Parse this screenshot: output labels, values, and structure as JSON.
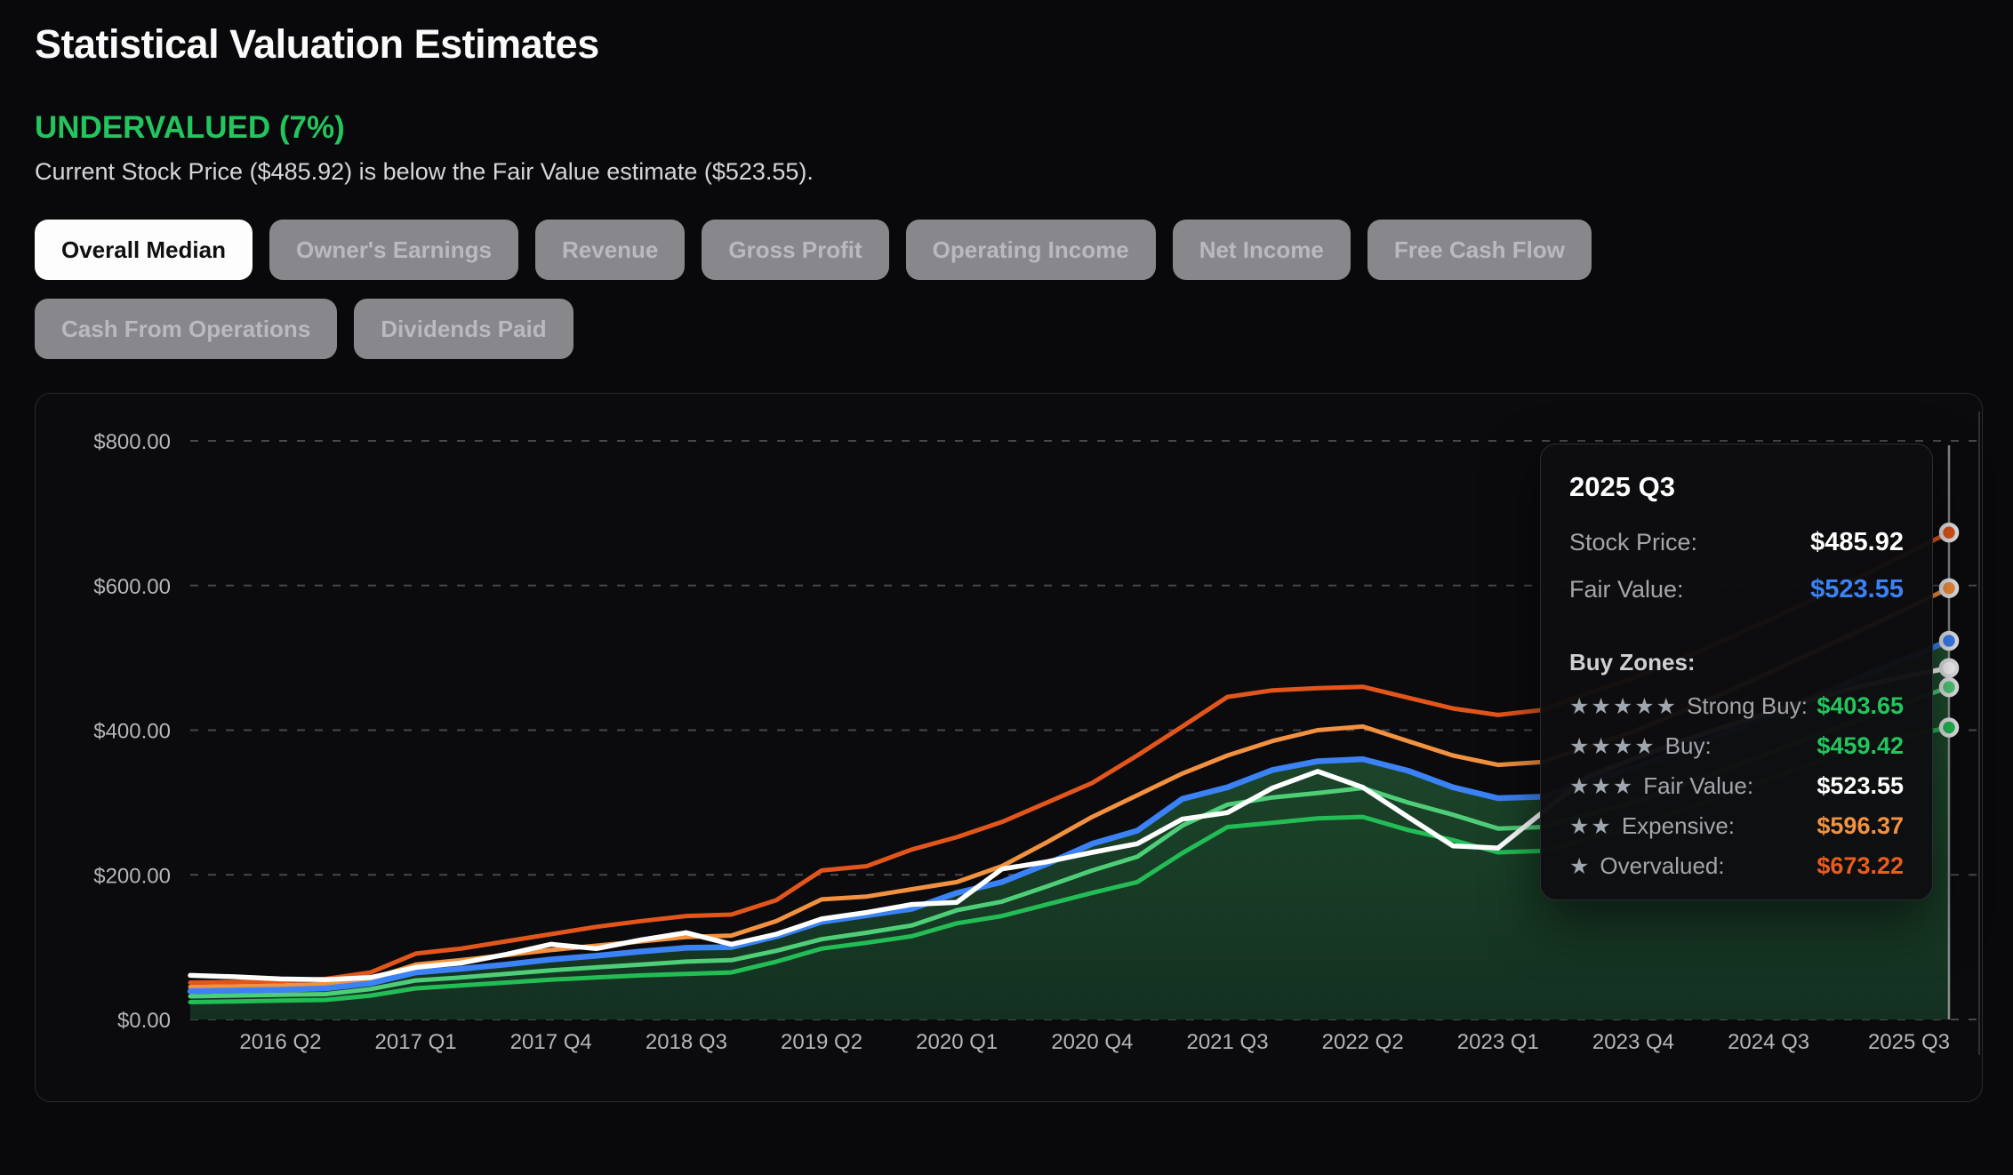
{
  "page": {
    "title": "Statistical Valuation Estimates"
  },
  "status": {
    "label": "UNDERVALUED (7%)",
    "description": "Current Stock Price ($485.92) is below the Fair Value estimate ($523.55).",
    "color": "#22c55e"
  },
  "tabs": {
    "items": [
      {
        "label": "Overall Median",
        "active": true
      },
      {
        "label": "Owner's Earnings",
        "active": false
      },
      {
        "label": "Revenue",
        "active": false
      },
      {
        "label": "Gross Profit",
        "active": false
      },
      {
        "label": "Operating Income",
        "active": false
      },
      {
        "label": "Net Income",
        "active": false
      },
      {
        "label": "Free Cash Flow",
        "active": false
      },
      {
        "label": "Cash From Operations",
        "active": false
      },
      {
        "label": "Dividends Paid",
        "active": false
      }
    ]
  },
  "tooltip": {
    "title": "2025 Q3",
    "rows": [
      {
        "label": "Stock Price:",
        "value": "$485.92",
        "color": "#ffffff"
      },
      {
        "label": "Fair Value:",
        "value": "$523.55",
        "color": "#3b82f6"
      }
    ],
    "buy_zones_label": "Buy Zones:",
    "zones": [
      {
        "stars": "★★★★★",
        "label": "Strong Buy:",
        "value": "$403.65",
        "color": "#22c55e"
      },
      {
        "stars": "★★★★",
        "label": "Buy:",
        "value": "$459.42",
        "color": "#22c55e"
      },
      {
        "stars": "★★★",
        "label": "Fair Value:",
        "value": "$523.55",
        "color": "#ffffff"
      },
      {
        "stars": "★★",
        "label": "Expensive:",
        "value": "$596.37",
        "color": "#f2913f"
      },
      {
        "stars": "★",
        "label": "Overvalued:",
        "value": "$673.22",
        "color": "#e85d1e"
      }
    ]
  },
  "chart_data": {
    "type": "line",
    "title": "Statistical valuation bands vs stock price, quarterly",
    "ylim": [
      0,
      800
    ],
    "grid": "horizontal dashed",
    "legend_position": "none (values shown in hover tooltip)",
    "y_tick_values": [
      0,
      200,
      400,
      600,
      800
    ],
    "y_tick_labels": [
      "$0.00",
      "$200.00",
      "$400.00",
      "$600.00",
      "$800.00"
    ],
    "x_tick_indices": [
      2,
      5,
      8,
      11,
      14,
      17,
      20,
      23,
      26,
      29,
      32,
      35,
      39
    ],
    "x_tick_labels": [
      "2016 Q2",
      "2017 Q1",
      "2017 Q4",
      "2018 Q3",
      "2019 Q2",
      "2020 Q1",
      "2020 Q4",
      "2021 Q3",
      "2022 Q2",
      "2023 Q1",
      "2023 Q4",
      "2024 Q3",
      "2025 Q3"
    ],
    "hover": {
      "index": 39,
      "label": "2025 Q3"
    },
    "categories": [
      "2015 Q4",
      "2016 Q1",
      "2016 Q2",
      "2016 Q3",
      "2016 Q4",
      "2017 Q1",
      "2017 Q2",
      "2017 Q3",
      "2017 Q4",
      "2018 Q1",
      "2018 Q2",
      "2018 Q3",
      "2018 Q4",
      "2019 Q1",
      "2019 Q2",
      "2019 Q3",
      "2019 Q4",
      "2020 Q1",
      "2020 Q2",
      "2020 Q3",
      "2020 Q4",
      "2021 Q1",
      "2021 Q2",
      "2021 Q3",
      "2021 Q4",
      "2022 Q1",
      "2022 Q2",
      "2022 Q3",
      "2022 Q4",
      "2023 Q1",
      "2023 Q2",
      "2023 Q3",
      "2023 Q4",
      "2024 Q1",
      "2024 Q2",
      "2024 Q3",
      "2024 Q4",
      "2025 Q1",
      "2025 Q2",
      "2025 Q3"
    ],
    "series": [
      {
        "name": "Overvalued",
        "color": "#e2561c",
        "values": [
          51,
          52,
          53,
          56,
          65,
          91,
          98,
          108,
          118,
          128,
          136,
          143,
          145,
          165,
          206,
          212,
          235,
          252,
          273,
          300,
          327,
          365,
          405,
          446,
          455,
          458,
          460,
          445,
          430,
          421,
          428,
          451,
          472,
          497,
          524,
          552,
          581,
          611,
          642,
          673.22
        ]
      },
      {
        "name": "Expensive",
        "color": "#f2913f",
        "values": [
          45,
          46,
          47,
          49,
          56,
          76,
          82,
          89,
          96,
          102,
          108,
          114,
          116,
          136,
          166,
          170,
          180,
          190,
          212,
          245,
          280,
          310,
          340,
          365,
          385,
          400,
          405,
          385,
          365,
          352,
          356,
          377,
          398,
          424,
          451,
          479,
          508,
          537,
          566,
          596.37
        ]
      },
      {
        "name": "Fair Value",
        "color": "#3b82f6",
        "area_fill": true,
        "values": [
          39,
          40,
          41,
          43,
          50,
          65,
          70,
          76,
          83,
          88,
          94,
          99,
          100,
          115,
          135,
          144,
          153,
          175,
          190,
          215,
          243,
          261,
          305,
          321,
          345,
          357,
          360,
          344,
          321,
          306,
          308,
          330,
          348,
          370,
          395,
          420,
          446,
          472,
          498,
          523.55
        ]
      },
      {
        "name": "Stock Price",
        "color": "#ffffff",
        "values": [
          61,
          59,
          56,
          55,
          58,
          72,
          78,
          90,
          104,
          98,
          110,
          120,
          104,
          118,
          139,
          148,
          159,
          162,
          208,
          218,
          231,
          243,
          277,
          286,
          320,
          343,
          321,
          280,
          240,
          237,
          287,
          336,
          360,
          383,
          404,
          424,
          443,
          460,
          474,
          485.92
        ]
      },
      {
        "name": "Buy",
        "color": "#4fce78",
        "values": [
          32,
          33,
          34,
          35,
          42,
          54,
          58,
          63,
          68,
          72,
          76,
          80,
          82,
          95,
          111,
          120,
          130,
          151,
          163,
          184,
          206,
          225,
          268,
          297,
          307,
          313,
          320,
          300,
          283,
          264,
          266,
          283,
          300,
          322,
          345,
          368,
          391,
          414,
          437,
          459.42
        ]
      },
      {
        "name": "Strong Buy",
        "color": "#22bd55",
        "values": [
          24,
          25,
          26,
          27,
          33,
          43,
          47,
          51,
          55,
          58,
          61,
          63,
          65,
          80,
          98,
          106,
          115,
          133,
          143,
          159,
          175,
          190,
          230,
          266,
          272,
          278,
          280,
          262,
          248,
          231,
          233,
          250,
          267,
          288,
          310,
          332,
          355,
          379,
          391,
          403.65
        ]
      }
    ]
  }
}
